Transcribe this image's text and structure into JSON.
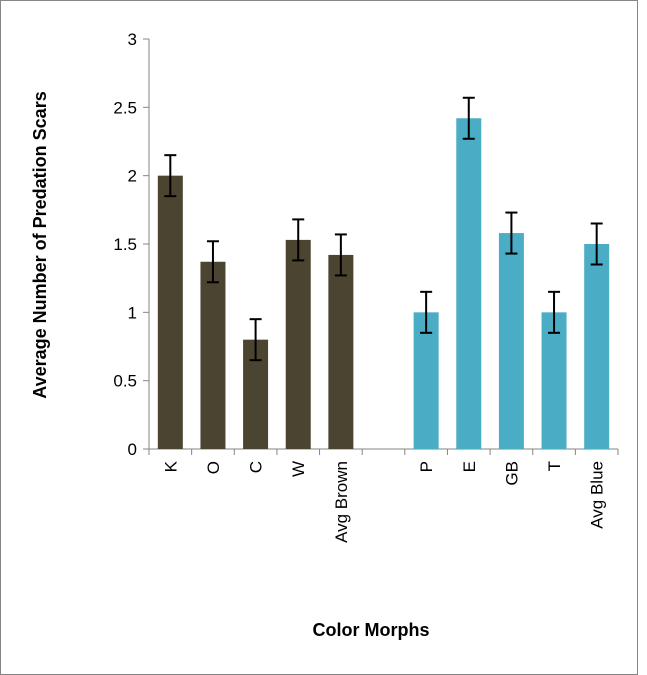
{
  "chart_data": {
    "type": "bar",
    "title": "",
    "xlabel": "Color Morphs",
    "ylabel": "Average Number of Predation Scars",
    "ylim": [
      0,
      3
    ],
    "yticks": [
      "0",
      "0.5",
      "1",
      "1.5",
      "2",
      "2.5",
      "3"
    ],
    "grid": false,
    "legend": "none",
    "categories": [
      "K",
      "O",
      "C",
      "W",
      "Avg Brown",
      "",
      "P",
      "E",
      "GB",
      "T",
      "Avg Blue"
    ],
    "values": [
      2.0,
      1.37,
      0.8,
      1.53,
      1.42,
      null,
      1.0,
      2.42,
      1.58,
      1.0,
      1.5
    ],
    "error": [
      0.15,
      0.15,
      0.15,
      0.15,
      0.15,
      null,
      0.15,
      0.15,
      0.15,
      0.15,
      0.15
    ],
    "bar_colors": [
      "#4a4430",
      "#4a4430",
      "#4a4430",
      "#4a4430",
      "#4a4430",
      null,
      "#4bacc6",
      "#4bacc6",
      "#4bacc6",
      "#4bacc6",
      "#4bacc6"
    ]
  },
  "colors": {
    "brown": "#4a4430",
    "blue": "#4bacc6",
    "frame": "#868686",
    "axis": "#868686"
  }
}
